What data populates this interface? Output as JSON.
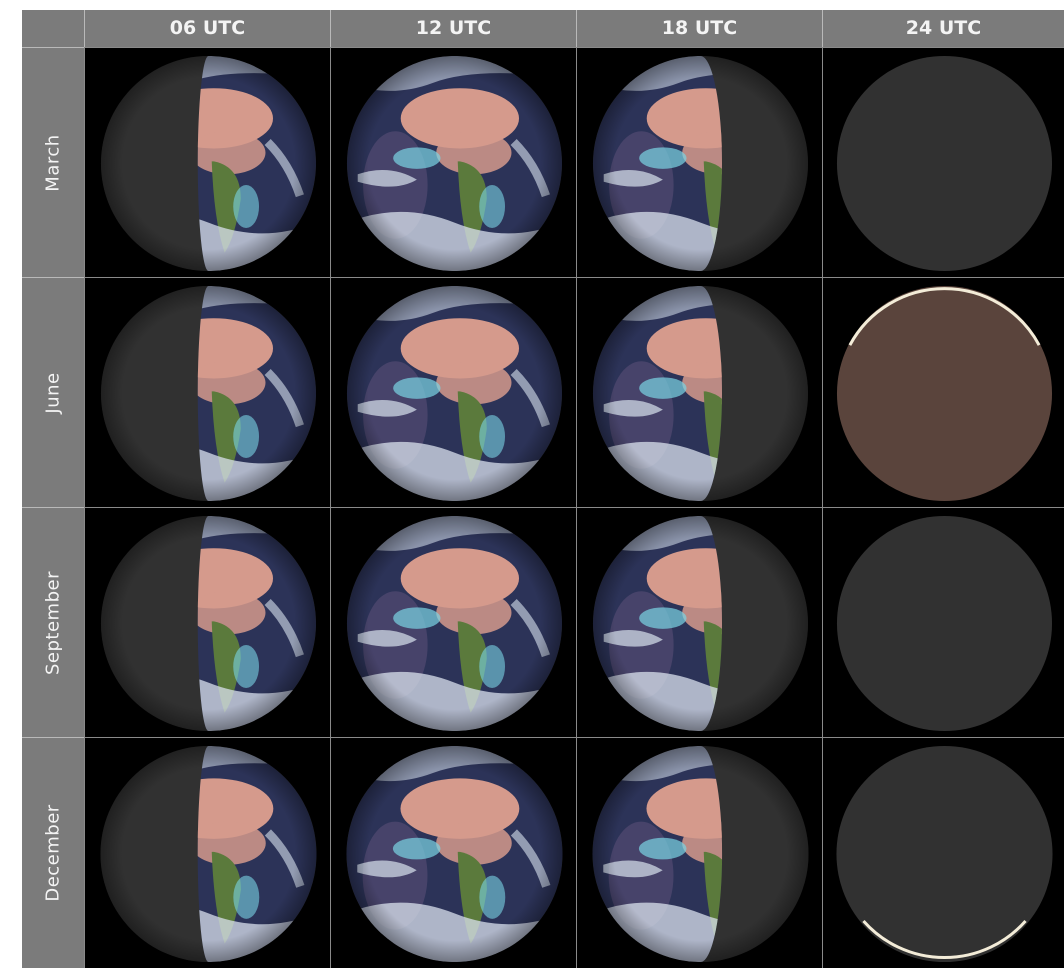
{
  "columns": [
    "06 UTC",
    "12 UTC",
    "18 UTC",
    "24 UTC"
  ],
  "rows": [
    "March",
    "June",
    "September",
    "December"
  ],
  "colors": {
    "header_bg": "#7b7b7b",
    "header_text": "#f4f4f4",
    "space": "#000000",
    "night_side": "#313131",
    "ocean": "#2c3358",
    "cloud": "#d9e2ee",
    "desert": "#d59a8c",
    "vegetation": "#5b7a3c",
    "cyan_cloud": "#7ad4e4",
    "june_night": "#5a443c",
    "limb": "#f3ecd8"
  },
  "lighting": {
    "06 UTC": {
      "lit_side": "right",
      "lit_fraction": 0.45
    },
    "12 UTC": {
      "lit_side": "full",
      "lit_fraction": 1.0
    },
    "18 UTC": {
      "lit_side": "left",
      "lit_fraction": 0.4
    },
    "24 UTC": {
      "lit_side": "none",
      "lit_fraction": 0.0
    }
  },
  "special_cases": {
    "June 24 UTC": "reddish disk with bright upper limb",
    "December 24 UTC": "dark disk with bright lower limb"
  }
}
